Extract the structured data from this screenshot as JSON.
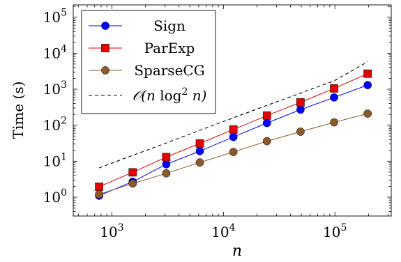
{
  "chart_data": {
    "type": "line",
    "title": "",
    "xlabel": "n",
    "ylabel": "Time (s)",
    "xscale": "log",
    "yscale": "log",
    "xlim": [
      450,
      320000
    ],
    "ylim": [
      0.3,
      220000
    ],
    "x": [
      768,
      1536,
      3072,
      6144,
      12288,
      24576,
      49152,
      98304,
      196608
    ],
    "x_ticks": [
      {
        "value": 1000,
        "label": "10",
        "exp": "3"
      },
      {
        "value": 10000,
        "label": "10",
        "exp": "4"
      },
      {
        "value": 100000,
        "label": "10",
        "exp": "5"
      }
    ],
    "y_ticks": [
      {
        "value": 1,
        "label": "10",
        "exp": "0"
      },
      {
        "value": 10,
        "label": "10",
        "exp": "1"
      },
      {
        "value": 100,
        "label": "10",
        "exp": "2"
      },
      {
        "value": 1000,
        "label": "10",
        "exp": "3"
      },
      {
        "value": 10000,
        "label": "10",
        "exp": "4"
      },
      {
        "value": 100000,
        "label": "10",
        "exp": "5"
      }
    ],
    "legend_position": "top-left",
    "grid": false,
    "series": [
      {
        "name": "Sign",
        "marker": "circle",
        "color": "#0000ff",
        "values": [
          1.1,
          2.7,
          8.2,
          19,
          47,
          115,
          270,
          590,
          1300
        ]
      },
      {
        "name": "ParExp",
        "marker": "square",
        "color": "#e00000",
        "values": [
          1.95,
          4.9,
          13,
          31,
          76,
          185,
          430,
          1050,
          2700
        ]
      },
      {
        "name": "SparseCG",
        "marker": "circle",
        "color": "#8b5a2b",
        "values": [
          1.2,
          2.4,
          4.6,
          9.2,
          18,
          36,
          66,
          120,
          210
        ]
      },
      {
        "name_prefix": "𝒪(",
        "name_math": "n",
        "name_log": " log",
        "name_sup": "2",
        "name_suffix": " n)",
        "marker": "none",
        "color": "#000000",
        "dashed": true,
        "values": [
          6.5,
          14.5,
          32,
          72,
          160,
          355,
          780,
          1700,
          5800
        ]
      }
    ]
  }
}
